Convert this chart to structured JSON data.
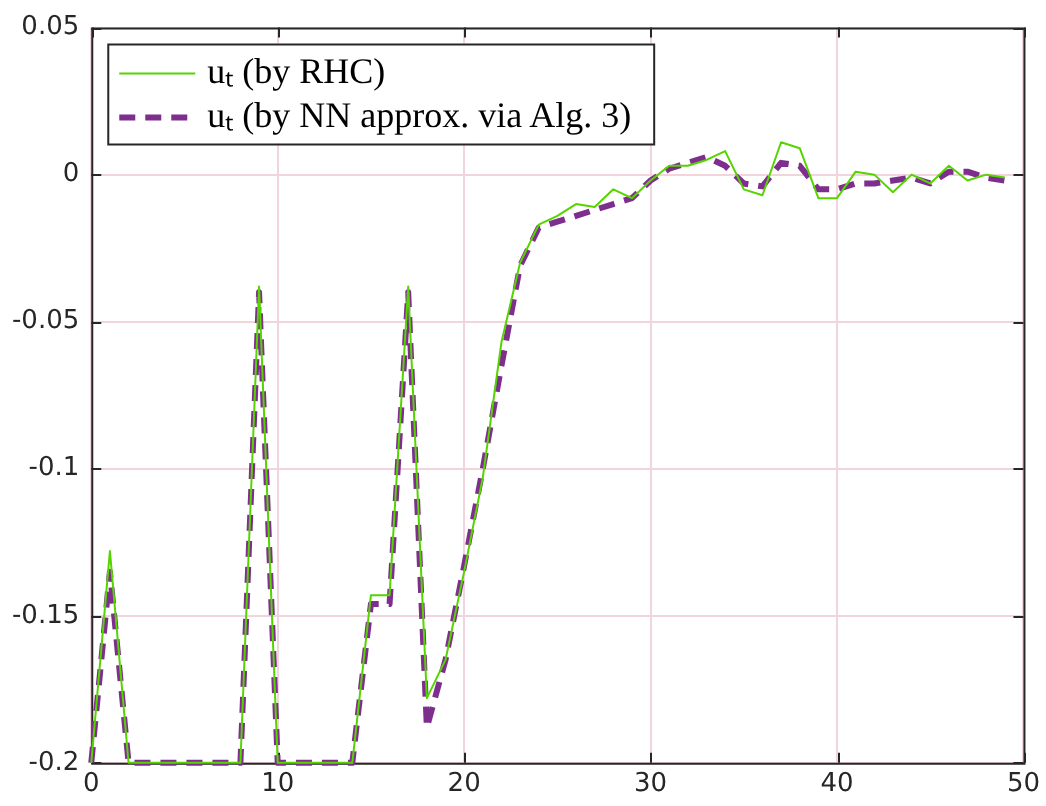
{
  "chart_data": {
    "type": "line",
    "x": [
      0,
      1,
      2,
      3,
      4,
      5,
      6,
      7,
      8,
      9,
      10,
      11,
      12,
      13,
      14,
      15,
      16,
      17,
      18,
      19,
      20,
      21,
      22,
      23,
      24,
      25,
      26,
      27,
      28,
      29,
      30,
      31,
      32,
      33,
      34,
      35,
      36,
      37,
      38,
      39,
      40,
      41,
      42,
      43,
      44,
      45,
      46,
      47,
      48,
      49
    ],
    "series": [
      {
        "name": "uₜ (by RHC)",
        "color": "#55d400",
        "line_style": "solid",
        "values": [
          -0.2,
          -0.128,
          -0.2,
          -0.2,
          -0.2,
          -0.2,
          -0.2,
          -0.2,
          -0.2,
          -0.038,
          -0.2,
          -0.2,
          -0.2,
          -0.2,
          -0.2,
          -0.143,
          -0.143,
          -0.038,
          -0.178,
          -0.165,
          -0.135,
          -0.103,
          -0.057,
          -0.03,
          -0.017,
          -0.014,
          -0.01,
          -0.011,
          -0.005,
          -0.008,
          -0.002,
          0.003,
          0.003,
          0.005,
          0.008,
          -0.005,
          -0.007,
          0.011,
          0.009,
          -0.008,
          -0.008,
          0.001,
          0,
          -0.006,
          0,
          -0.003,
          0.003,
          -0.002,
          0,
          -0.001
        ]
      },
      {
        "name": "uₜ (by NN approx. via Alg. 3)",
        "color": "#7e2f8e",
        "line_style": "dashed",
        "values": [
          -0.2,
          -0.135,
          -0.2,
          -0.2,
          -0.2,
          -0.2,
          -0.2,
          -0.2,
          -0.2,
          -0.04,
          -0.2,
          -0.2,
          -0.2,
          -0.2,
          -0.2,
          -0.146,
          -0.146,
          -0.04,
          -0.188,
          -0.165,
          -0.133,
          -0.1,
          -0.065,
          -0.031,
          -0.018,
          -0.016,
          -0.014,
          -0.012,
          -0.01,
          -0.008,
          -0.002,
          0.002,
          0.004,
          0.006,
          0.003,
          -0.003,
          -0.004,
          0.004,
          0.003,
          -0.005,
          -0.005,
          -0.003,
          -0.003,
          -0.002,
          -0.001,
          -0.003,
          0.001,
          0.001,
          -0.001,
          -0.002
        ]
      }
    ],
    "xlim": [
      0,
      50
    ],
    "xticks": [
      0,
      10,
      20,
      30,
      40,
      50
    ],
    "ylim": [
      -0.2,
      0.05
    ],
    "yticks": [
      -0.2,
      -0.15,
      -0.1,
      -0.05,
      0,
      0.05
    ],
    "grid": true,
    "legend": "top left",
    "marker": "none"
  }
}
